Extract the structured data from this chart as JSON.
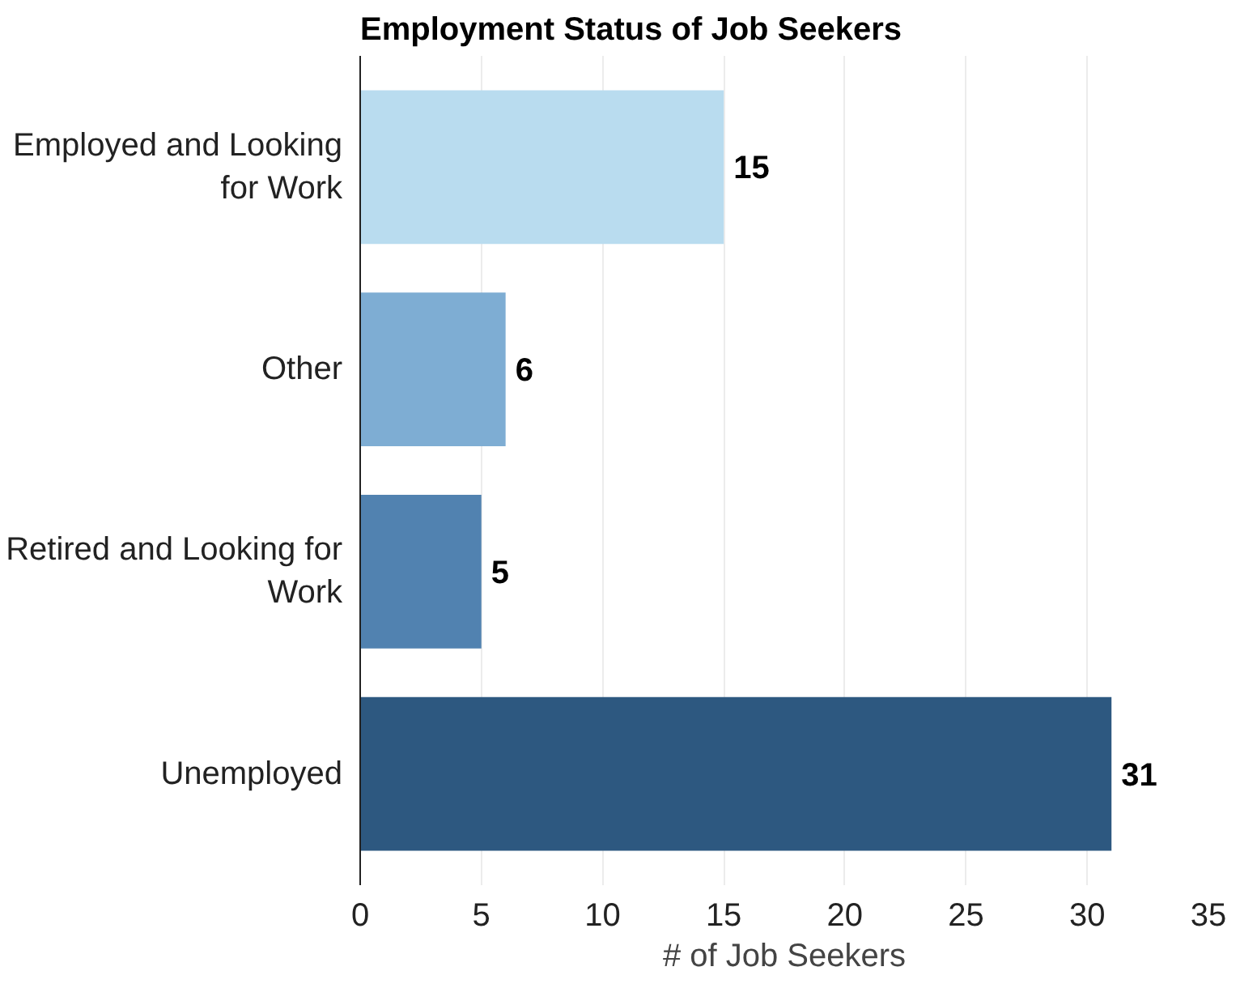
{
  "chart_data": {
    "type": "bar",
    "orientation": "horizontal",
    "title": "Employment Status of Job Seekers",
    "xlabel": "# of Job Seekers",
    "categories": [
      "Employed and Looking for Work",
      "Other",
      "Retired and Looking for Work",
      "Unemployed"
    ],
    "values": [
      15,
      6,
      5,
      31
    ],
    "colors": [
      "#b9dcef",
      "#7eadd3",
      "#5182b0",
      "#2d5880"
    ],
    "xlim": [
      0,
      35
    ],
    "xticks": [
      0,
      5,
      10,
      15,
      20,
      25,
      30,
      35
    ],
    "grid": "x",
    "data_labels": true
  }
}
